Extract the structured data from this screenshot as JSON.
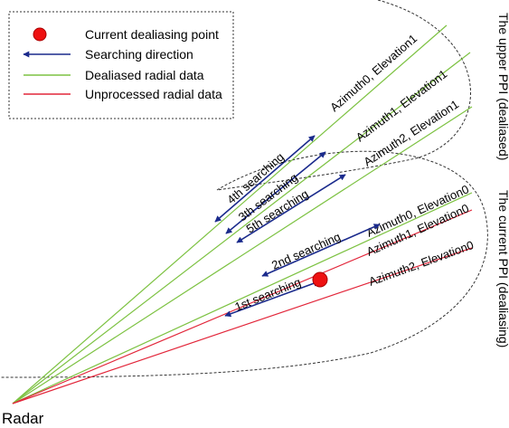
{
  "legend": {
    "items": [
      {
        "key": "point",
        "label": "Current dealiasing point",
        "color": "#ee1111"
      },
      {
        "key": "search",
        "label": "Searching direction",
        "color": "#1a2a8c"
      },
      {
        "key": "dealiased",
        "label": "Dealiased radial data",
        "color": "#7dc242"
      },
      {
        "key": "unprocessed",
        "label": "Unprocessed radial data",
        "color": "#e2263a"
      }
    ]
  },
  "radar_label": "Radar",
  "ppi_labels": {
    "upper": "The upper PPI (dealiased)",
    "current": "The current PPI (dealiasing)"
  },
  "radials": [
    {
      "label": "Azimuth0, Elevation1",
      "status": "dealiased"
    },
    {
      "label": "Azimuth1, Elevation1",
      "status": "dealiased"
    },
    {
      "label": "Azimuth2, Elevation1",
      "status": "dealiased"
    },
    {
      "label": "Azimuth0, Elevation0",
      "status": "dealiased"
    },
    {
      "label": "Azimuth1, Elevation0",
      "status": "unprocessed"
    },
    {
      "label": "Azimuth2, Elevation0",
      "status": "unprocessed"
    }
  ],
  "searches": [
    {
      "label": "1st searching"
    },
    {
      "label": "2nd searching"
    },
    {
      "label": "3th searching"
    },
    {
      "label": "4th searching"
    },
    {
      "label": "5th searching"
    }
  ]
}
